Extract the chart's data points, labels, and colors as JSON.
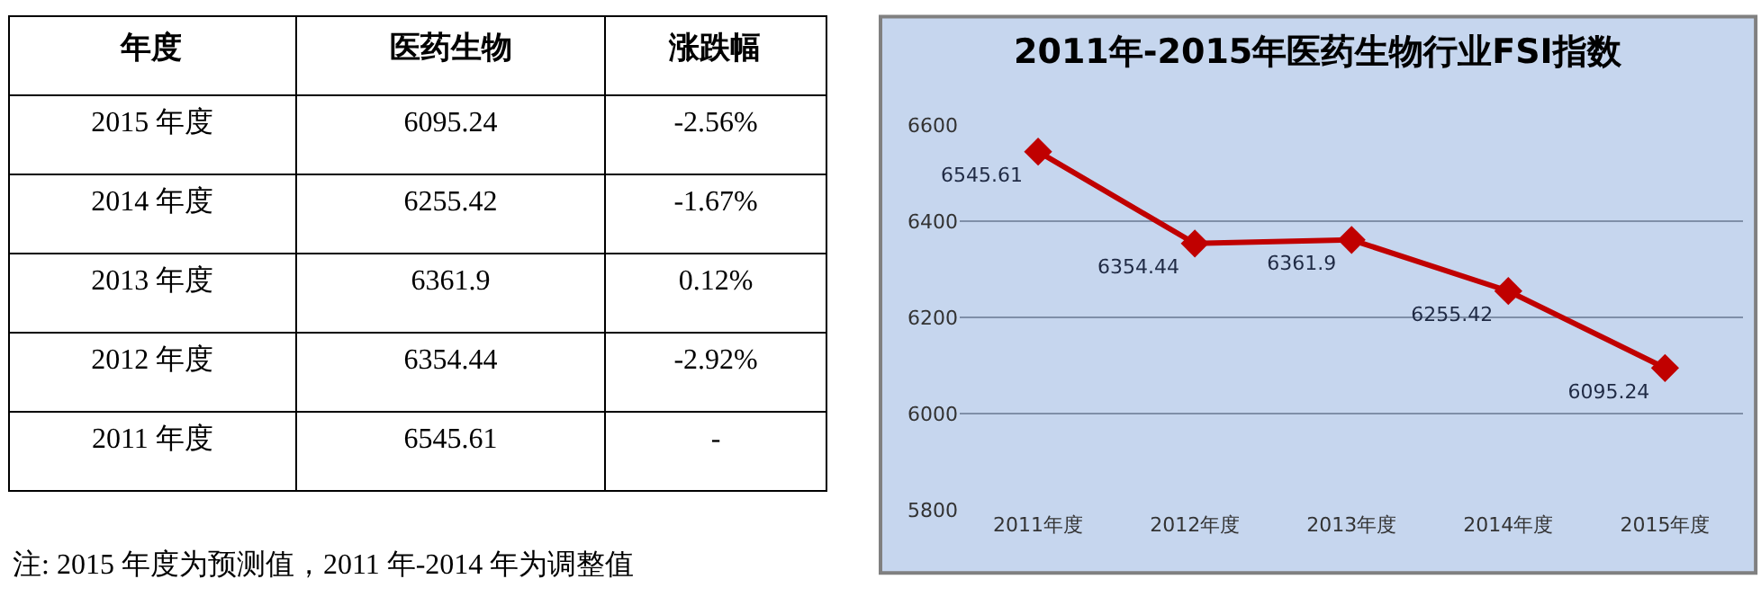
{
  "chart_data": [
    {
      "type": "heatmap",
      "ylabel": "年度",
      "categories": [
        "医药生物",
        "涨跌幅"
      ],
      "y_categories": [
        "2015 年度",
        "2014 年度",
        "2013 年度",
        "2012 年度",
        "2011 年度"
      ],
      "cells": [
        [
          null,
          null
        ],
        [
          null,
          null
        ],
        [
          null,
          null
        ],
        [
          null,
          null
        ],
        [
          null,
          null
        ]
      ],
      "cell_labels": [
        [
          "6095.24",
          "-2.56%"
        ],
        [
          "6255.42",
          "-1.67%"
        ],
        [
          "6361.9",
          "0.12%"
        ],
        [
          "6354.44",
          "-2.92%"
        ],
        [
          "6545.61",
          "-"
        ]
      ],
      "annotations": [
        "注: 2015 年度为预测值，2011 年-2014 年为调整值"
      ]
    },
    {
      "type": "line",
      "title": "2011年-2015年医药生物行业FSI指数",
      "categories": [
        "2011年度",
        "2012年度",
        "2013年度",
        "2014年度",
        "2015年度"
      ],
      "series": [
        {
          "color": "#c00000",
          "values": [
            6545.61,
            6354.44,
            6361.9,
            6255.42,
            6095.24
          ]
        }
      ],
      "ylim": [
        5800,
        6600
      ],
      "yticks": [
        5800,
        6000,
        6200,
        6400,
        6600
      ],
      "grid": "y",
      "marker": "diamond",
      "line_style": "solid",
      "data_labels": true
    }
  ]
}
